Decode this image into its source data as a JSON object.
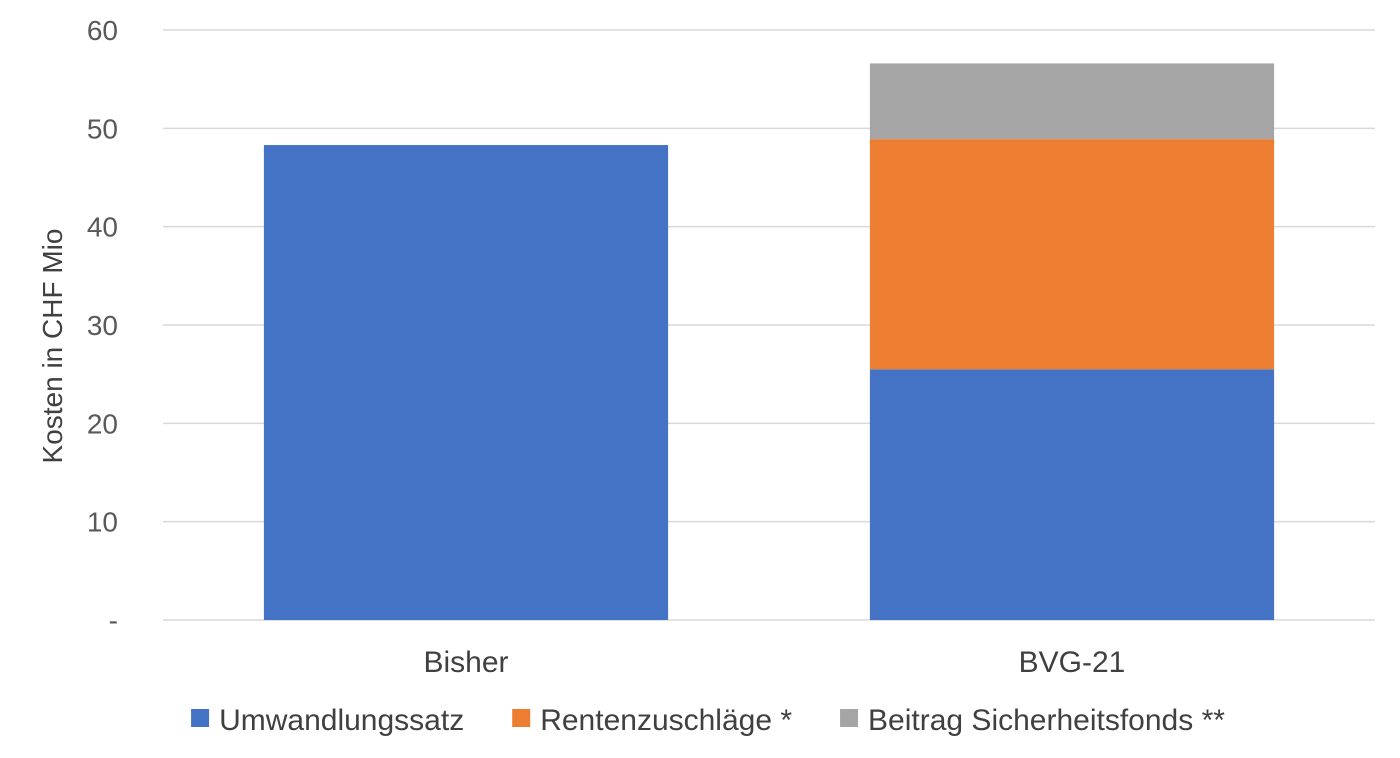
{
  "chart_data": {
    "type": "bar",
    "stacked": true,
    "categories": [
      "Bisher",
      "BVG-21"
    ],
    "series": [
      {
        "name": "Umwandlungssatz",
        "values": [
          48.3,
          25.5
        ],
        "color": "#4472C4"
      },
      {
        "name": "Rentenzuschläge *",
        "values": [
          0,
          23.4
        ],
        "color": "#ED7D31"
      },
      {
        "name": "Beitrag Sicherheitsfonds **",
        "values": [
          0,
          7.7
        ],
        "color": "#A5A5A5"
      }
    ],
    "ylabel": "Kosten in CHF Mio",
    "ylim": [
      0,
      60
    ],
    "yticks": [
      0,
      10,
      20,
      30,
      40,
      50,
      60
    ],
    "ytick_labels": [
      "-",
      "10",
      "20",
      "30",
      "40",
      "50",
      "60"
    ],
    "grid": true,
    "legend_position": "bottom"
  }
}
